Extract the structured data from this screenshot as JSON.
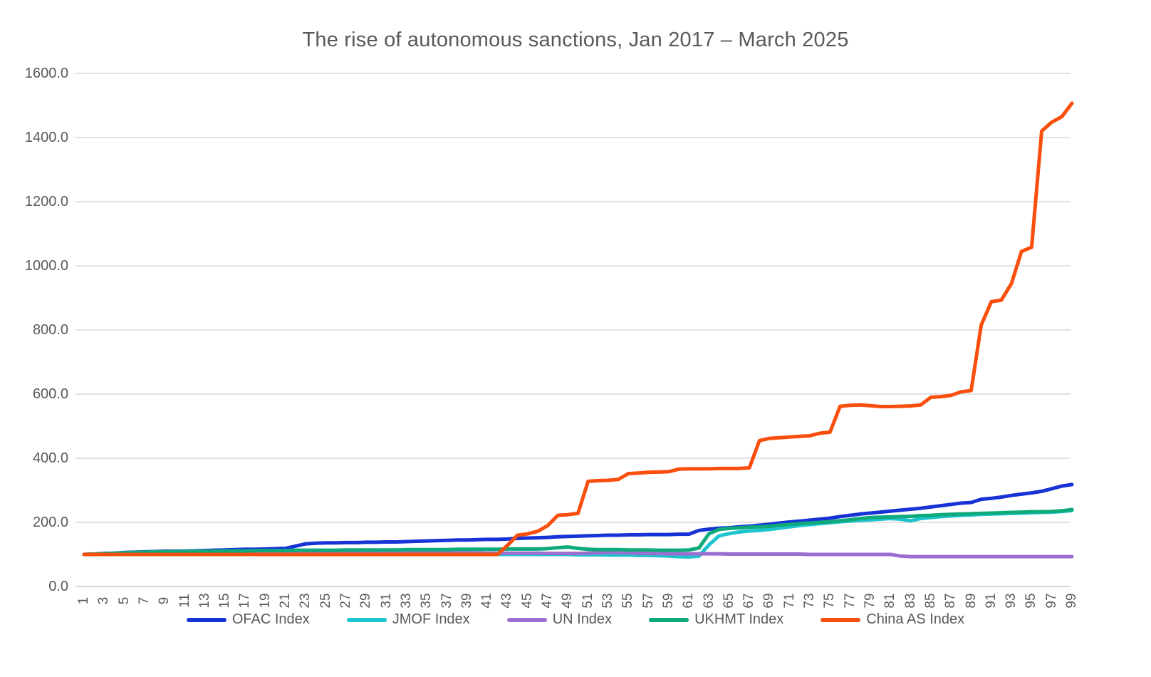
{
  "title": "The rise of autonomous sanctions, Jan 2017 – March 2025",
  "colors": {
    "axis_text": "#595959",
    "gridline": "#d9d9d9",
    "axis_line": "#c9c9c9",
    "background": "#ffffff"
  },
  "chart_data": {
    "type": "line",
    "title": "The rise of autonomous sanctions, Jan 2017 – March 2025",
    "xlabel": "",
    "ylabel": "",
    "x_range": [
      1,
      99
    ],
    "ylim": [
      0,
      1600
    ],
    "grid": "horizontal",
    "legend_position": "bottom",
    "y_ticks": [
      0,
      200,
      400,
      600,
      800,
      1000,
      1200,
      1400,
      1600
    ],
    "y_tick_labels": [
      "0.0",
      "200.0",
      "400.0",
      "600.0",
      "800.0",
      "1000.0",
      "1200.0",
      "1400.0",
      "1600.0"
    ],
    "x_tick_labels": [
      "1",
      "3",
      "5",
      "7",
      "9",
      "11",
      "13",
      "15",
      "17",
      "19",
      "21",
      "23",
      "25",
      "27",
      "29",
      "31",
      "33",
      "35",
      "37",
      "39",
      "41",
      "43",
      "45",
      "47",
      "49",
      "51",
      "53",
      "55",
      "57",
      "59",
      "61",
      "63",
      "65",
      "67",
      "69",
      "71",
      "73",
      "75",
      "77",
      "79",
      "81",
      "83",
      "85",
      "87",
      "89",
      "91",
      "93",
      "95",
      "97",
      "99"
    ],
    "series": [
      {
        "name": "OFAC Index",
        "color": "#1733d6",
        "values": [
          100,
          101,
          103,
          104,
          106,
          107,
          108,
          109,
          110,
          110,
          110,
          111,
          112,
          113,
          114,
          115,
          116,
          116,
          117,
          118,
          119,
          126,
          133,
          135,
          136,
          136,
          137,
          137,
          138,
          138,
          139,
          139,
          140,
          141,
          142,
          143,
          144,
          145,
          145,
          146,
          147,
          147,
          148,
          150,
          151,
          152,
          153,
          155,
          156,
          157,
          158,
          159,
          160,
          160,
          161,
          161,
          162,
          162,
          162,
          163,
          163,
          175,
          179,
          182,
          183,
          186,
          188,
          191,
          194,
          198,
          201,
          204,
          207,
          210,
          213,
          218,
          222,
          226,
          229,
          232,
          235,
          238,
          241,
          244,
          248,
          252,
          256,
          260,
          262,
          272,
          275,
          279,
          284,
          288,
          292,
          297,
          305,
          313,
          318
        ]
      },
      {
        "name": "JMOF Index",
        "color": "#1ec4cd",
        "values": [
          100,
          100,
          100,
          100,
          100,
          100,
          100,
          100,
          100,
          100,
          100,
          100,
          100,
          100,
          100,
          100,
          100,
          100,
          100,
          100,
          100,
          100,
          100,
          100,
          100,
          100,
          100,
          100,
          100,
          100,
          100,
          100,
          100,
          100,
          100,
          100,
          100,
          100,
          100,
          100,
          100,
          100,
          100,
          100,
          100,
          100,
          100,
          100,
          100,
          99,
          99,
          99,
          98,
          98,
          98,
          97,
          97,
          96,
          95,
          93,
          92,
          95,
          130,
          158,
          165,
          170,
          173,
          175,
          178,
          182,
          186,
          190,
          193,
          196,
          199,
          202,
          204,
          206,
          208,
          210,
          212,
          210,
          205,
          212,
          215,
          218,
          220,
          222,
          223,
          225,
          226,
          227,
          228,
          229,
          230,
          231,
          232,
          234,
          237
        ]
      },
      {
        "name": "UN Index",
        "color": "#9b6fd0",
        "values": [
          100,
          101,
          102,
          103,
          104,
          105,
          106,
          107,
          107,
          108,
          108,
          109,
          109,
          110,
          110,
          110,
          110,
          110,
          110,
          110,
          110,
          110,
          110,
          110,
          110,
          109,
          109,
          108,
          108,
          108,
          107,
          107,
          106,
          106,
          106,
          105,
          105,
          105,
          105,
          105,
          104,
          104,
          104,
          104,
          104,
          104,
          103,
          103,
          103,
          103,
          104,
          105,
          106,
          106,
          105,
          104,
          103,
          103,
          102,
          102,
          102,
          102,
          102,
          102,
          101,
          101,
          101,
          101,
          101,
          101,
          101,
          101,
          100,
          100,
          100,
          100,
          100,
          100,
          100,
          100,
          100,
          95,
          93,
          93,
          93,
          93,
          93,
          93,
          93,
          93,
          93,
          93,
          93,
          93,
          93,
          93,
          93,
          93,
          93
        ]
      },
      {
        "name": "UKHMT Index",
        "color": "#0eaa7c",
        "values": [
          100,
          101,
          102,
          104,
          105,
          106,
          107,
          108,
          108,
          109,
          109,
          110,
          110,
          110,
          111,
          111,
          111,
          112,
          112,
          112,
          112,
          113,
          113,
          113,
          113,
          113,
          114,
          114,
          114,
          114,
          114,
          114,
          115,
          115,
          115,
          115,
          115,
          116,
          116,
          116,
          116,
          116,
          117,
          117,
          117,
          117,
          118,
          121,
          123,
          119,
          116,
          115,
          115,
          115,
          114,
          114,
          114,
          113,
          113,
          113,
          114,
          120,
          165,
          178,
          181,
          183,
          185,
          186,
          188,
          191,
          193,
          196,
          198,
          200,
          202,
          205,
          208,
          212,
          215,
          216,
          217,
          218,
          219,
          221,
          222,
          224,
          225,
          226,
          227,
          228,
          229,
          230,
          231,
          232,
          233,
          233,
          234,
          236,
          240
        ]
      },
      {
        "name": "China AS Index",
        "color": "#fa4e0d",
        "values": [
          100,
          100,
          100,
          100,
          100,
          100,
          100,
          100,
          100,
          100,
          100,
          100,
          100,
          100,
          100,
          100,
          100,
          100,
          100,
          100,
          100,
          100,
          100,
          100,
          100,
          100,
          100,
          100,
          100,
          100,
          100,
          100,
          100,
          100,
          100,
          100,
          100,
          100,
          100,
          100,
          100,
          100,
          128,
          160,
          164,
          172,
          190,
          222,
          224,
          228,
          328,
          330,
          331,
          334,
          352,
          354,
          356,
          357,
          358,
          366,
          367,
          367,
          367,
          368,
          368,
          368,
          370,
          455,
          462,
          464,
          466,
          468,
          470,
          478,
          481,
          562,
          565,
          566,
          564,
          561,
          561,
          562,
          563,
          566,
          590,
          592,
          596,
          607,
          611,
          815,
          888,
          893,
          945,
          1045,
          1058,
          1420,
          1448,
          1465,
          1507
        ]
      }
    ]
  }
}
